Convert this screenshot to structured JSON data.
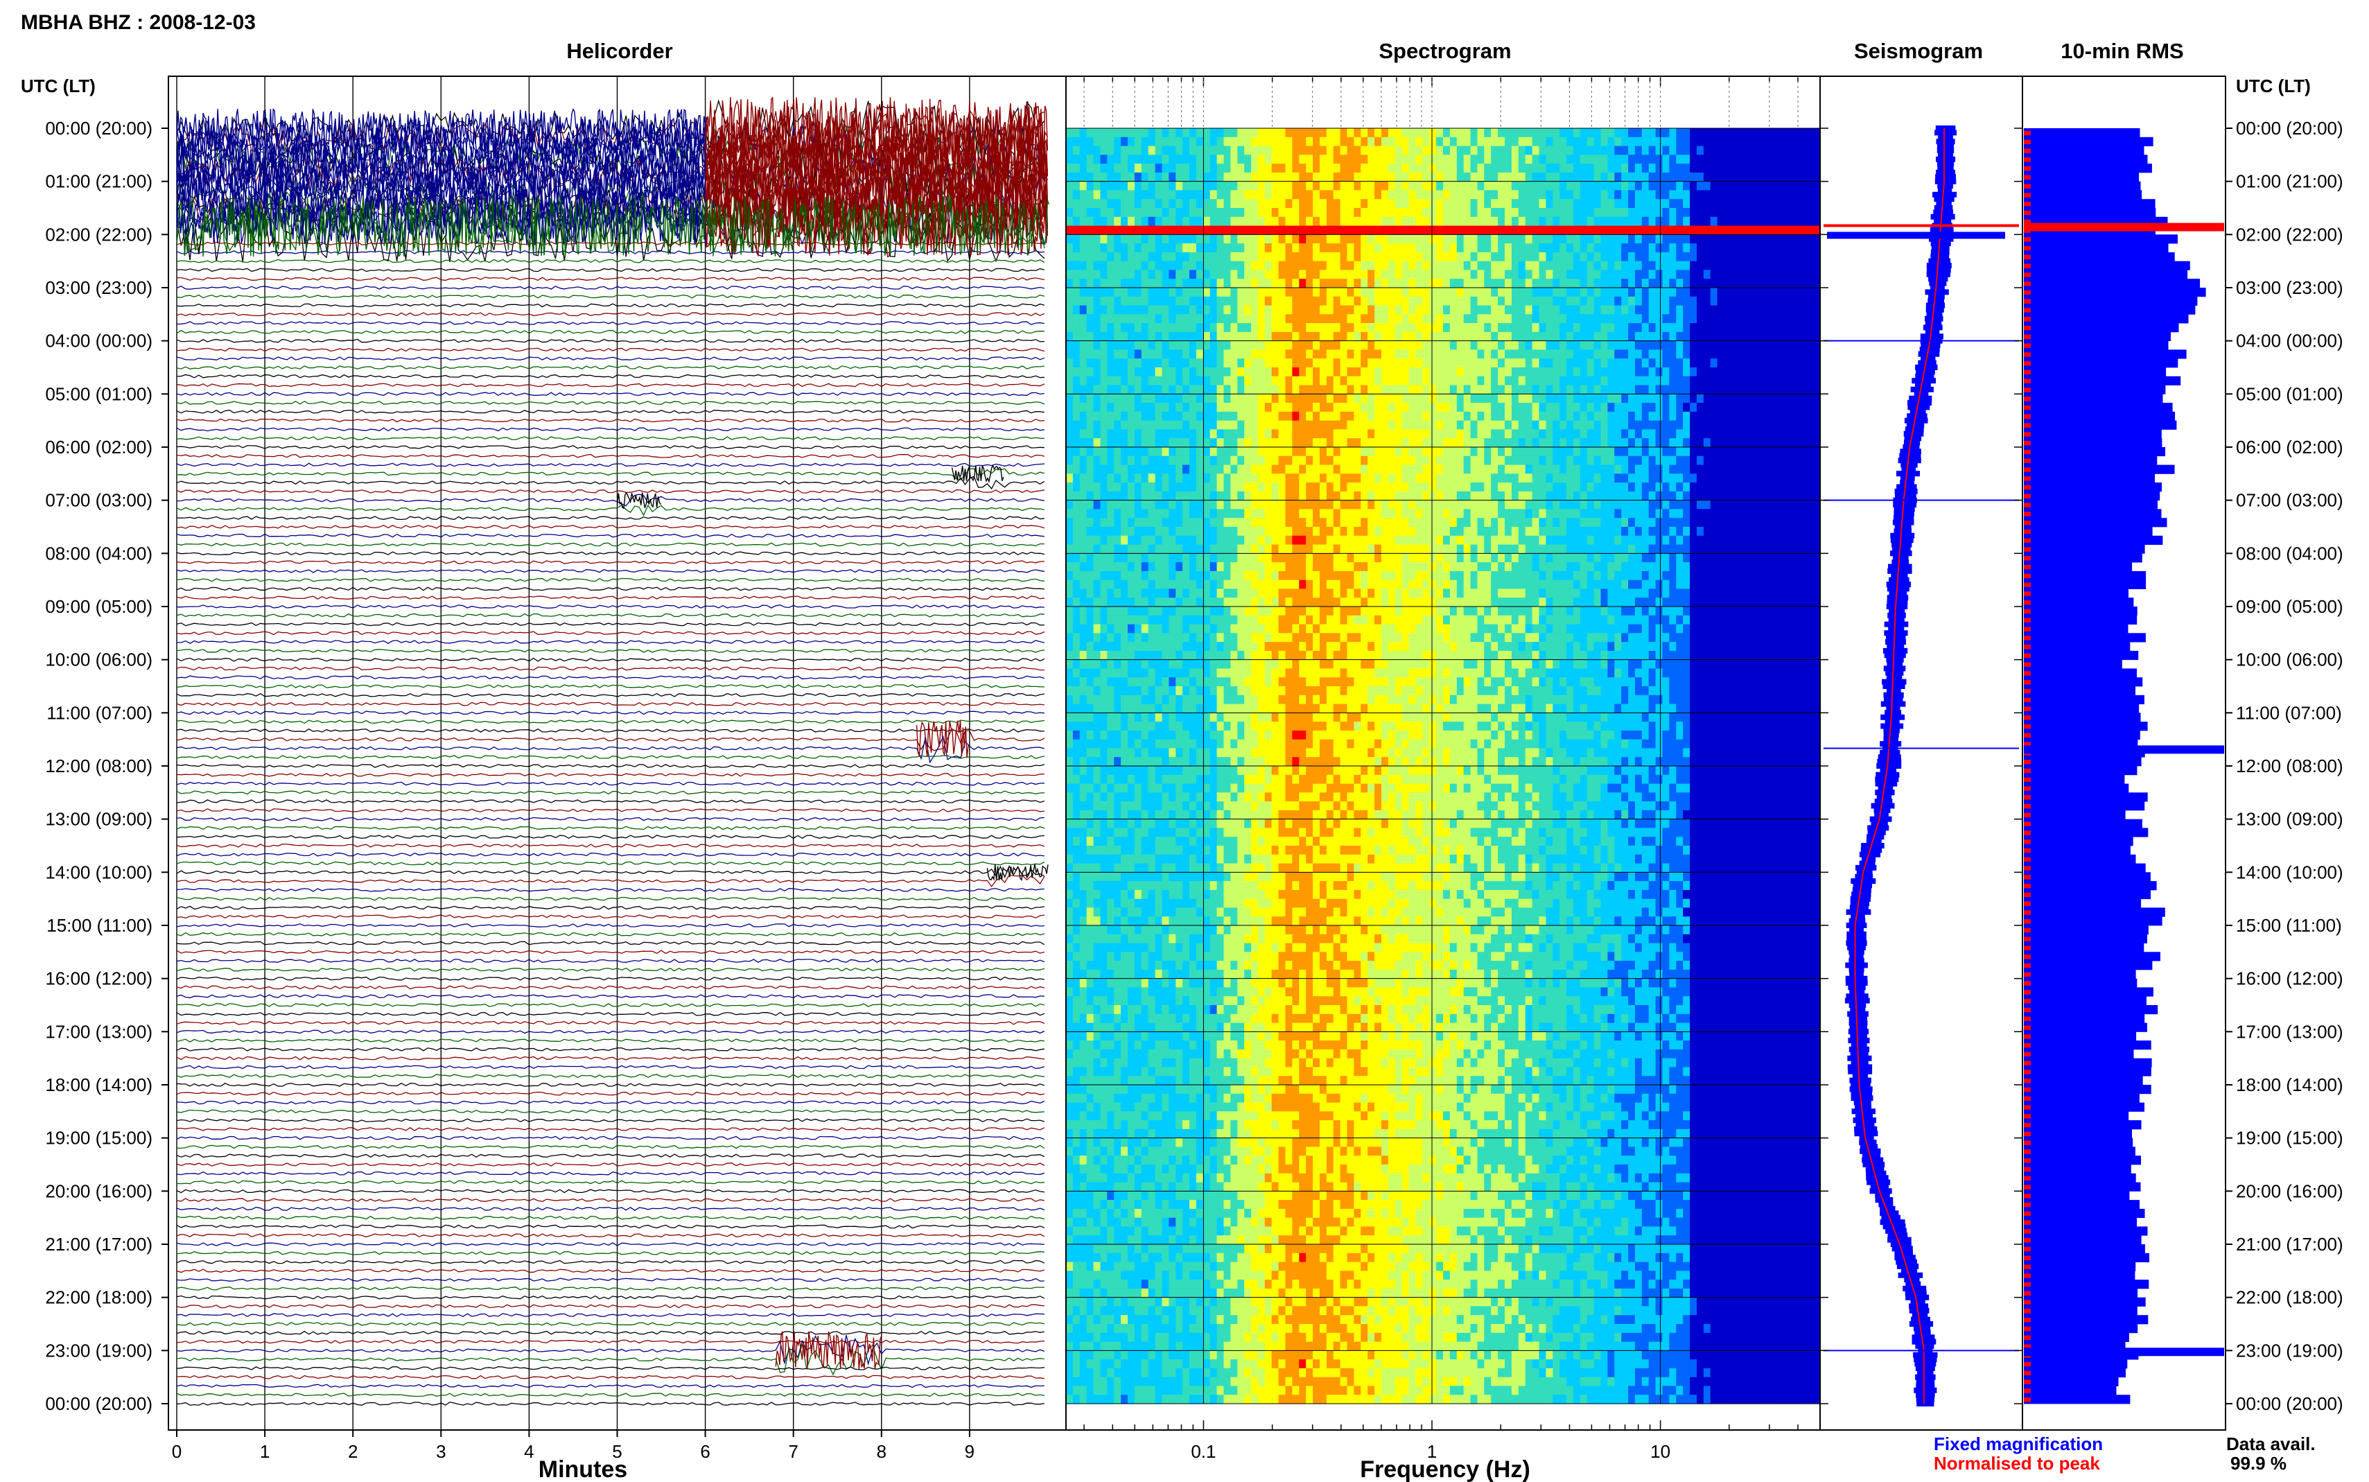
{
  "header": {
    "title": "MBHA BHZ : 2008-12-03"
  },
  "panels": {
    "helicorder": "Helicorder",
    "spectrogram": "Spectrogram",
    "seismogram": "Seismogram",
    "rms": "10-min RMS"
  },
  "axis_headers": {
    "left": "UTC (LT)",
    "right": "UTC (LT)"
  },
  "legend": {
    "fixed": "Fixed magnification",
    "normalised": "Normalised to peak",
    "fixed_color": "#0000ff",
    "normalised_color": "#ff0000"
  },
  "data_avail": {
    "label": "Data avail.",
    "value": "99.9 %"
  },
  "colors": {
    "trace_cycle": [
      "#000000",
      "#8b0000",
      "#00008b",
      "#006400"
    ]
  },
  "chart_data": [
    {
      "type": "line",
      "name": "helicorder",
      "title": "Helicorder",
      "xlabel": "Minutes",
      "x_ticks": [
        "0",
        "1",
        "2",
        "3",
        "4",
        "5",
        "6",
        "7",
        "8",
        "9"
      ],
      "xlim": [
        0,
        10
      ],
      "y_ticks": [
        "00:00 (20:00)",
        "01:00 (21:00)",
        "02:00 (22:00)",
        "03:00 (23:00)",
        "04:00 (00:00)",
        "05:00 (01:00)",
        "06:00 (02:00)",
        "07:00 (03:00)",
        "08:00 (04:00)",
        "09:00 (05:00)",
        "10:00 (06:00)",
        "11:00 (07:00)",
        "12:00 (08:00)",
        "13:00 (09:00)",
        "14:00 (10:00)",
        "15:00 (11:00)",
        "16:00 (12:00)",
        "17:00 (13:00)",
        "18:00 (14:00)",
        "19:00 (15:00)",
        "20:00 (16:00)",
        "21:00 (17:00)",
        "22:00 (18:00)",
        "23:00 (19:00)",
        "00:00 (20:00)"
      ],
      "traces_per_hour": 6,
      "events": [
        {
          "time": "00:00-02:00",
          "minute_start": 6.0,
          "minute_end": 9.9,
          "amp": "saturated",
          "color": "#8b0000"
        },
        {
          "time": "00:00-02:00",
          "minute_start": 0.0,
          "minute_end": 6.0,
          "amp": "large",
          "color": "#00008b"
        },
        {
          "time": "01:50",
          "minute_start": 0.0,
          "minute_end": 9.9,
          "amp": "saturated",
          "color": "#006400"
        },
        {
          "time": "07:00",
          "minute_start": 5.0,
          "minute_end": 5.5,
          "amp": "medium",
          "color": "#000000"
        },
        {
          "time": "06:30",
          "minute_start": 8.8,
          "minute_end": 9.4,
          "amp": "medium",
          "color": "#000000"
        },
        {
          "time": "11:30",
          "minute_start": 8.4,
          "minute_end": 9.0,
          "amp": "large",
          "color": "#8b0000"
        },
        {
          "time": "14:00",
          "minute_start": 9.2,
          "minute_end": 9.9,
          "amp": "medium",
          "color": "#000000"
        },
        {
          "time": "23:00",
          "minute_start": 6.8,
          "minute_end": 8.0,
          "amp": "large",
          "color": "#8b0000"
        }
      ]
    },
    {
      "type": "heatmap",
      "name": "spectrogram",
      "title": "Spectrogram",
      "xlabel": "Frequency (Hz)",
      "x_scale": "log",
      "xlim": [
        0.025,
        50
      ],
      "x_ticks": [
        0.1,
        1,
        10
      ],
      "x_tick_labels": [
        "0.1",
        "1",
        "10"
      ],
      "peak_frequency_hz": 0.25,
      "colormap": [
        "#0000cc",
        "#0066ff",
        "#00ccff",
        "#33ddbb",
        "#ccff66",
        "#ffff00",
        "#ff9900",
        "#ff0000"
      ],
      "strong_rows": [
        "01:50"
      ]
    },
    {
      "type": "line",
      "name": "seismogram",
      "title": "Seismogram",
      "series": [
        {
          "name": "Fixed magnification",
          "color": "#0000ff"
        },
        {
          "name": "Normalised to peak",
          "color": "#ff0000"
        }
      ],
      "hourly_offset_fraction": [
        0.62,
        0.62,
        0.6,
        0.58,
        0.55,
        0.5,
        0.45,
        0.42,
        0.4,
        0.38,
        0.37,
        0.36,
        0.34,
        0.3,
        0.22,
        0.18,
        0.18,
        0.19,
        0.2,
        0.23,
        0.3,
        0.4,
        0.48,
        0.52,
        0.52
      ],
      "spikes": [
        "01:50",
        "04:00",
        "07:00",
        "11:40",
        "23:00"
      ]
    },
    {
      "type": "bar",
      "name": "rms",
      "title": "10-min RMS",
      "orientation": "horizontal",
      "hourly_level": [
        0.58,
        0.62,
        0.72,
        0.92,
        0.76,
        0.72,
        0.7,
        0.72,
        0.6,
        0.55,
        0.55,
        0.57,
        0.55,
        0.57,
        0.6,
        0.68,
        0.6,
        0.62,
        0.58,
        0.55,
        0.57,
        0.6,
        0.6,
        0.55,
        0.5
      ],
      "peaks": [
        {
          "time": "01:50",
          "level": 1.0,
          "color": "#ff0000"
        },
        {
          "time": "11:40",
          "level": 1.0,
          "color": "#0000ff"
        },
        {
          "time": "23:00",
          "level": 1.0,
          "color": "#0000ff"
        }
      ]
    }
  ]
}
